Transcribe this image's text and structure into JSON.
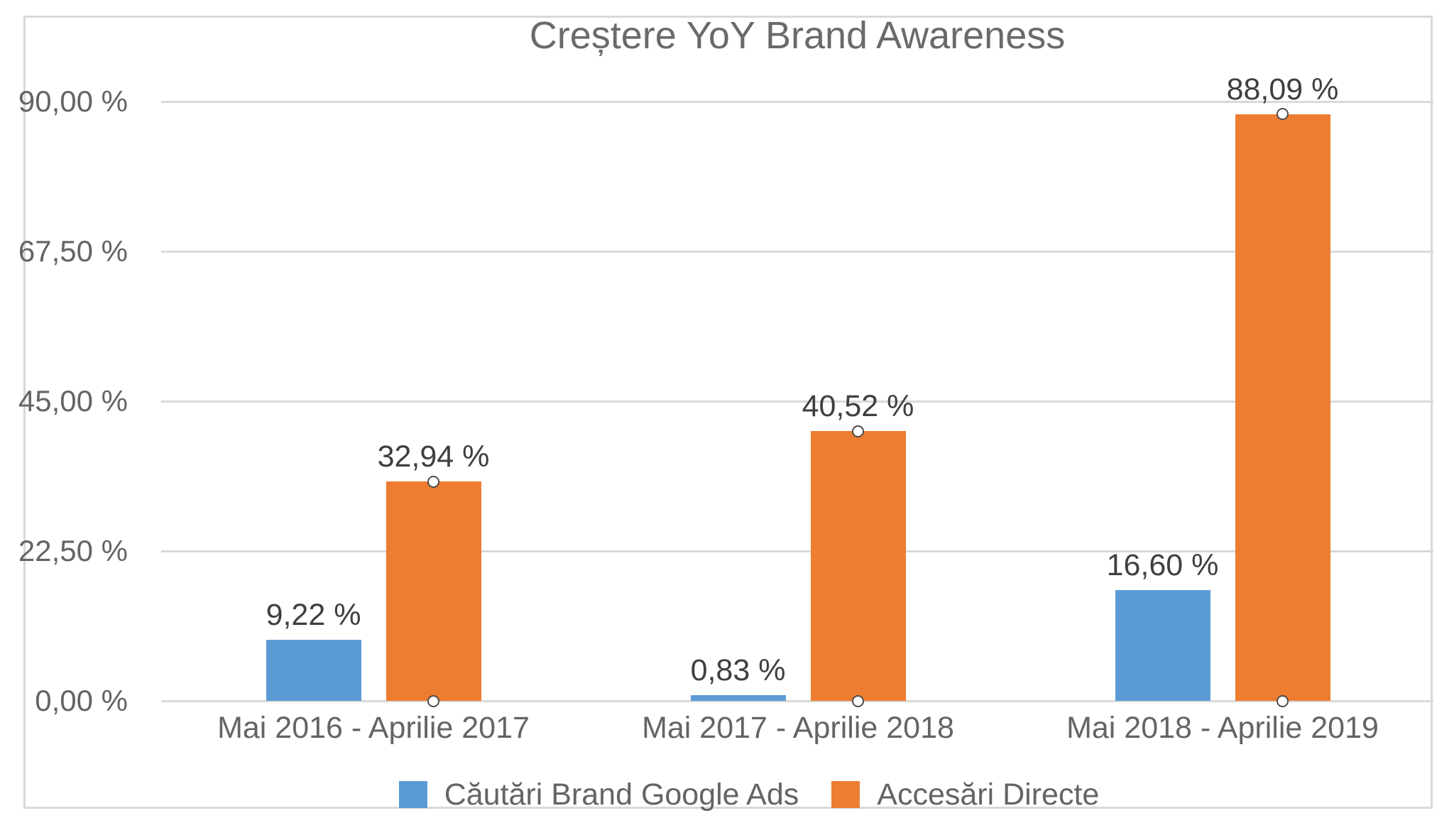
{
  "chart_data": {
    "type": "bar",
    "title": "Creștere YoY Brand Awareness",
    "categories": [
      "Mai 2016 - Aprilie 2017",
      "Mai 2017 - Aprilie 2018",
      "Mai 2018 - Aprilie 2019"
    ],
    "series": [
      {
        "name": "Căutări Brand Google Ads",
        "color": "#5B9BD5",
        "values": [
          9.22,
          0.83,
          16.6
        ],
        "value_labels": [
          "9,22 %",
          "0,83 %",
          "16,60 %"
        ],
        "endpoint_markers": false
      },
      {
        "name": "Accesări Directe",
        "color": "#ED7D31",
        "values": [
          32.94,
          40.52,
          88.09
        ],
        "value_labels": [
          "32,94 %",
          "40,52 %",
          "88,09 %"
        ],
        "endpoint_markers": true
      }
    ],
    "y_axis": {
      "min": 0,
      "max": 90,
      "ticks": [
        {
          "value": 0,
          "label": "0,00 %"
        },
        {
          "value": 22.5,
          "label": "22,50 %"
        },
        {
          "value": 45,
          "label": "45,00 %"
        },
        {
          "value": 67.5,
          "label": "67,50 %"
        },
        {
          "value": 90,
          "label": "90,00 %"
        }
      ]
    },
    "grid": true,
    "legend_position": "bottom",
    "colors": {
      "gridline": "#d9d9d9",
      "frame_border": "#d9d9d9",
      "title_text": "#6a6a6a",
      "axis_text": "#646464",
      "data_label_text": "#3f3f3f",
      "marker_fill": "#ffffff",
      "marker_stroke": "#4d4d4d"
    }
  }
}
